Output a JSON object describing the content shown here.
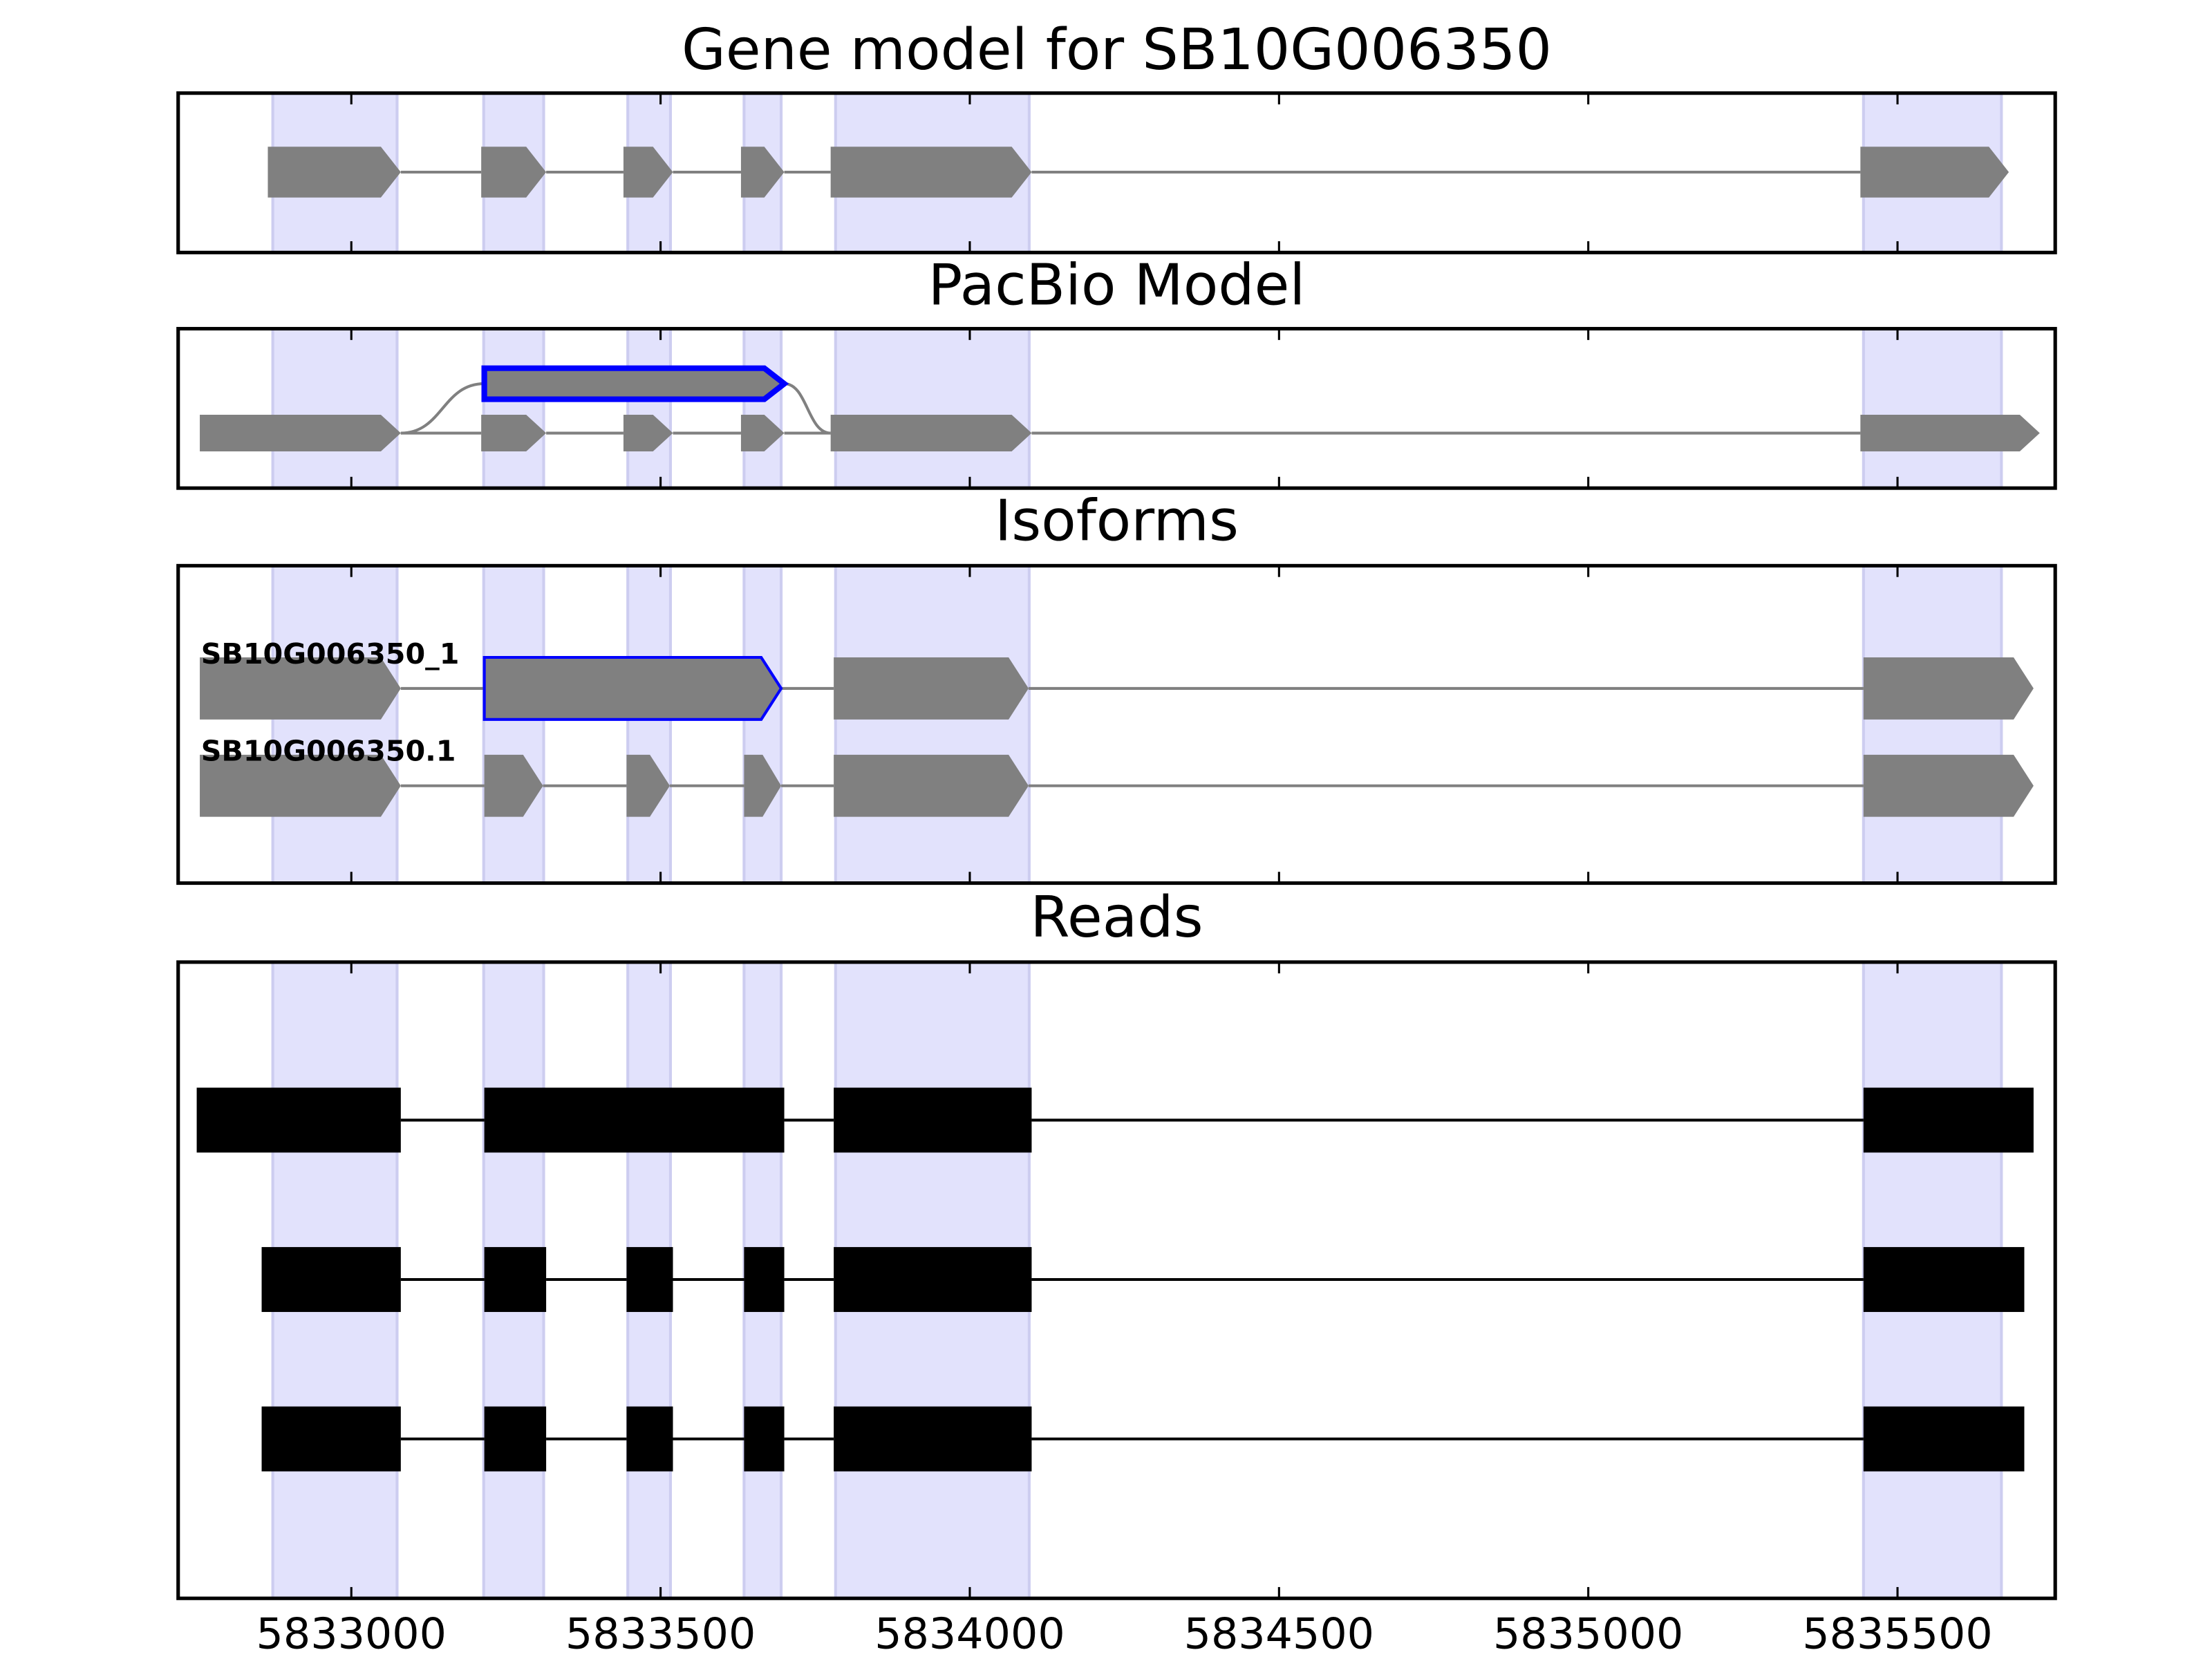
{
  "chart_data": {
    "xlim": [
      5832720,
      5835755
    ],
    "xticks": [
      5833000,
      5833500,
      5834000,
      5834500,
      5835000,
      5835500
    ],
    "highlight_regions": [
      [
        5832873,
        5833074
      ],
      [
        5833214,
        5833311
      ],
      [
        5833447,
        5833516
      ],
      [
        5833635,
        5833695
      ],
      [
        5833783,
        5834096
      ],
      [
        5835445,
        5835668
      ]
    ],
    "panels": [
      {
        "type": "gene-track",
        "title": "Gene model for SB10G006350",
        "rows": [
          {
            "exons": [
              [
                5832865,
                5833080
              ],
              [
                5833210,
                5833315
              ],
              [
                5833440,
                5833520
              ],
              [
                5833630,
                5833700
              ],
              [
                5833775,
                5834100
              ],
              [
                5835440,
                5835680
              ]
            ]
          }
        ]
      },
      {
        "type": "gene-track",
        "title": "PacBio Model",
        "rows": [
          {
            "exons": [
              [
                5833215,
                5833700
              ]
            ],
            "outlined_exon": 0,
            "link_row": 1
          },
          {
            "exons": [
              [
                5832755,
                5833080
              ],
              [
                5833210,
                5833315
              ],
              [
                5833440,
                5833520
              ],
              [
                5833630,
                5833700
              ],
              [
                5833775,
                5834100
              ],
              [
                5835440,
                5835730
              ]
            ]
          }
        ]
      },
      {
        "type": "gene-track",
        "title": "Isoforms",
        "rows": [
          {
            "label": "SB10G006350_1",
            "exons": [
              [
                5832755,
                5833080
              ],
              [
                5833215,
                5833695
              ],
              [
                5833780,
                5834095
              ],
              [
                5835445,
                5835720
              ]
            ],
            "outlined_exon": 1
          },
          {
            "label": "SB10G006350.1",
            "exons": [
              [
                5832755,
                5833080
              ],
              [
                5833215,
                5833310
              ],
              [
                5833445,
                5833515
              ],
              [
                5833635,
                5833695
              ],
              [
                5833780,
                5834095
              ],
              [
                5835445,
                5835720
              ]
            ]
          }
        ]
      },
      {
        "type": "reads",
        "title": "Reads",
        "rows": [
          {
            "exons": [
              [
                5832750,
                5833080
              ],
              [
                5833215,
                5833700
              ],
              [
                5833780,
                5834100
              ],
              [
                5835445,
                5835720
              ]
            ]
          },
          {
            "exons": [
              [
                5832855,
                5833080
              ],
              [
                5833215,
                5833315
              ],
              [
                5833445,
                5833520
              ],
              [
                5833635,
                5833700
              ],
              [
                5833780,
                5834100
              ],
              [
                5835445,
                5835705
              ]
            ]
          },
          {
            "exons": [
              [
                5832855,
                5833080
              ],
              [
                5833215,
                5833315
              ],
              [
                5833445,
                5833520
              ],
              [
                5833635,
                5833700
              ],
              [
                5833780,
                5834100
              ],
              [
                5835445,
                5835705
              ]
            ]
          }
        ]
      }
    ]
  }
}
